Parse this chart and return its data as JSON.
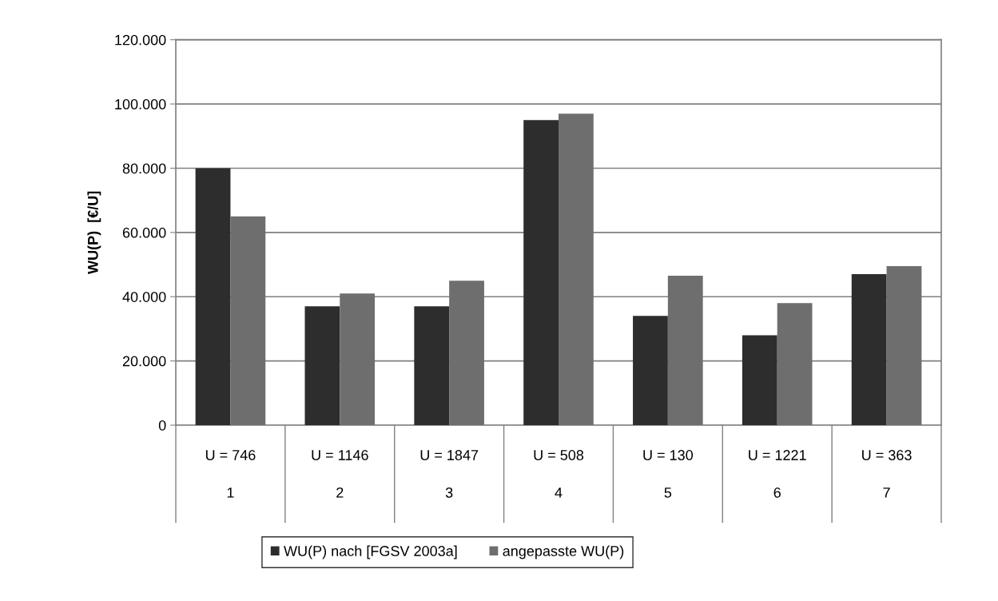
{
  "chart_data": {
    "type": "bar",
    "ylabel": "WU(P)  [€/U]",
    "categories": [
      "U = 746\n1",
      "U = 1146\n2",
      "U = 1847\n3",
      "U = 508\n4",
      "U = 130\n5",
      "U = 1221\n6",
      "U = 363\n7"
    ],
    "series": [
      {
        "name": "WU(P) nach [FGSV 2003a]",
        "color": "#2d2d2d",
        "values": [
          80000,
          37000,
          37000,
          95000,
          34000,
          28000,
          47000
        ]
      },
      {
        "name": "angepasste WU(P)",
        "color": "#6e6e6e",
        "values": [
          65000,
          41000,
          45000,
          97000,
          46500,
          38000,
          49500
        ]
      }
    ],
    "ylim": [
      0,
      120000
    ],
    "yticks": [
      {
        "value": 0,
        "label": "0"
      },
      {
        "value": 20000,
        "label": "20.000"
      },
      {
        "value": 40000,
        "label": "40.000"
      },
      {
        "value": 60000,
        "label": "60.000"
      },
      {
        "value": 80000,
        "label": "80.000"
      },
      {
        "value": 100000,
        "label": "100.000"
      },
      {
        "value": 120000,
        "label": "120.000"
      }
    ],
    "grid": "y",
    "legend": "bottom"
  }
}
